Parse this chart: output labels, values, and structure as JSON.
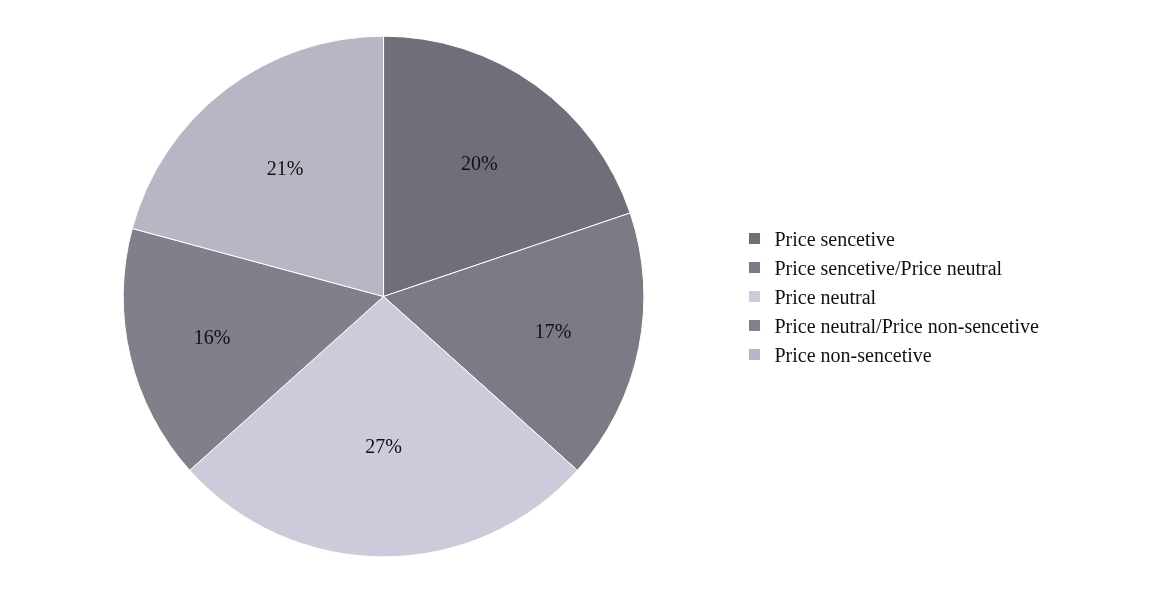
{
  "chart_data": {
    "type": "pie",
    "categories": [
      "Price sencetive",
      "Price sencetive/Price neutral",
      "Price neutral",
      "Price neutral/Price non-sencetive",
      "Price non-sencetive"
    ],
    "values": [
      20,
      17,
      27,
      16,
      21
    ],
    "colors": [
      "#6f6f7a",
      "#7b7b86",
      "#cbcbdc",
      "#80808a",
      "#b6b6c4"
    ],
    "value_labels": [
      "20%",
      "17%",
      "27%",
      "16%",
      "21%"
    ],
    "legend": "right"
  }
}
